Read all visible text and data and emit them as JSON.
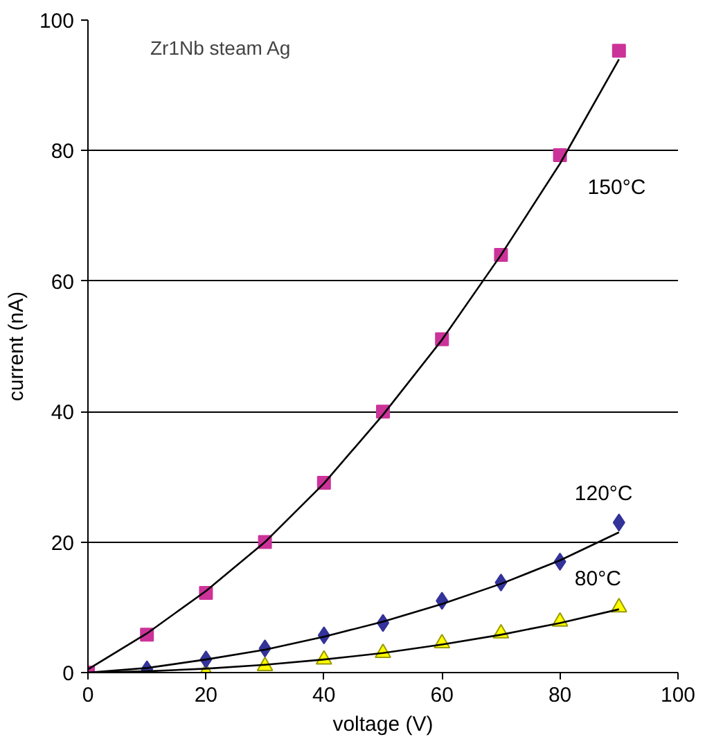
{
  "chart_data": {
    "type": "scatter",
    "xlabel": "voltage (V)",
    "ylabel": "current (nA)",
    "annotations": [
      "Zr1Nb steam Ag"
    ],
    "x": [
      0,
      10,
      20,
      30,
      40,
      50,
      60,
      70,
      80,
      90
    ],
    "series": [
      {
        "name": "150°C",
        "color": "#cc3399",
        "marker": "square",
        "values": [
          0,
          5.8,
          12.2,
          20,
          29.1,
          40,
          51.1,
          64,
          79.3,
          95.3
        ]
      },
      {
        "name": "120°C",
        "color": "#333399",
        "marker": "diamond",
        "values": [
          null,
          0.5,
          2,
          3.7,
          5.7,
          7.6,
          11,
          13.8,
          17,
          23
        ]
      },
      {
        "name": "80°C",
        "color": "#ffff00",
        "marker": "triangle",
        "values": [
          null,
          null,
          0,
          1,
          2,
          3,
          4.5,
          6,
          7.8,
          10
        ]
      },
      {
        "type": "line",
        "color": "#000000",
        "line_style": "solid",
        "values": [
          0.5,
          6,
          12.5,
          20,
          29,
          39.5,
          51,
          64,
          78,
          94
        ]
      },
      {
        "type": "line",
        "color": "#000000",
        "line_style": "solid",
        "values": [
          0,
          0.7,
          2,
          3.5,
          5.5,
          7.8,
          10.5,
          13.6,
          17.2,
          21.5
        ]
      },
      {
        "type": "line",
        "color": "#000000",
        "line_style": "solid",
        "values": [
          0,
          0.2,
          0.6,
          1.2,
          2,
          3,
          4.3,
          5.8,
          7.6,
          9.7
        ]
      }
    ],
    "xlim": [
      0,
      100
    ],
    "ylim": [
      0,
      100
    ],
    "xticks": [
      0,
      20,
      40,
      60,
      80,
      100
    ],
    "yticks": [
      0,
      20,
      40,
      60,
      80,
      100
    ],
    "grid": "y"
  }
}
